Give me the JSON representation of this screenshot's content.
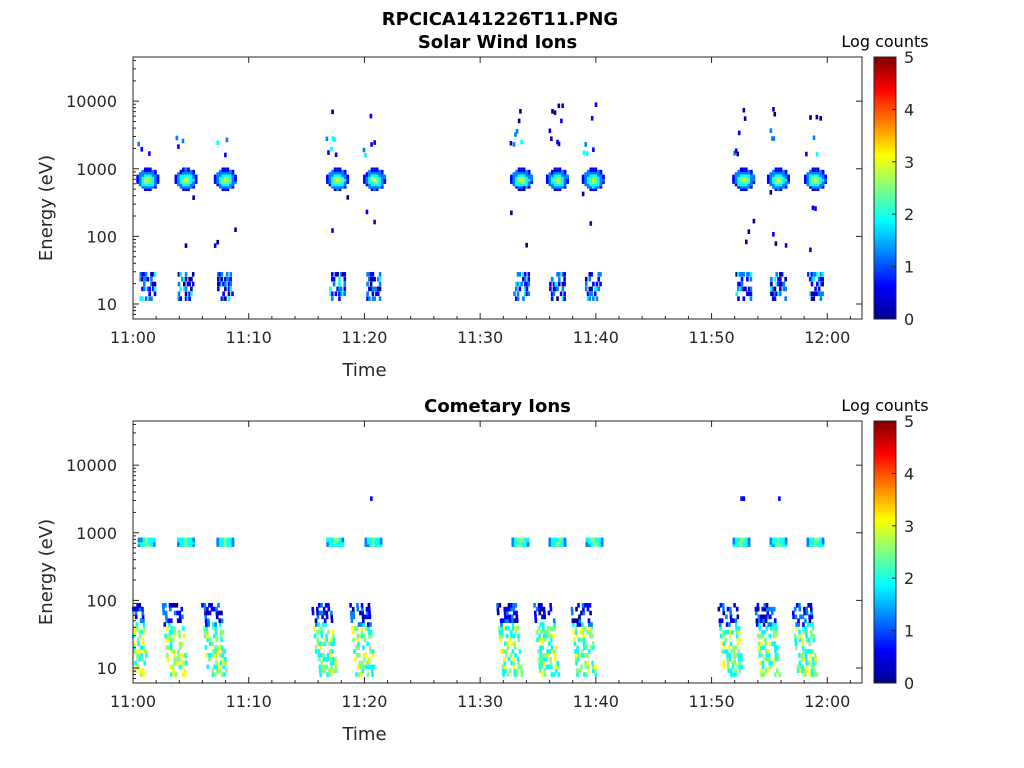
{
  "figure": {
    "title": "RPCICA141226T11.PNG"
  },
  "colormap": [
    "#00008f",
    "#0000ff",
    "#0080ff",
    "#00ffff",
    "#80ff80",
    "#ffff00",
    "#ff8000",
    "#ff0000",
    "#800000"
  ],
  "chart_data": [
    {
      "type": "heatmap",
      "title": "Solar Wind Ions",
      "xlabel": "Time",
      "ylabel": "Energy (eV)",
      "x_ticks": [
        "11:00",
        "11:10",
        "11:20",
        "11:30",
        "11:40",
        "11:50",
        "12:00"
      ],
      "x_tick_values_min": [
        0,
        10,
        20,
        30,
        40,
        50,
        60
      ],
      "xlim_min": [
        0,
        63
      ],
      "y_scale": "log",
      "y_ticks": [
        "10",
        "100",
        "1000",
        "10000"
      ],
      "y_tick_values": [
        10,
        100,
        1000,
        10000
      ],
      "ylim": [
        6,
        45000
      ],
      "colorbar": {
        "label": "Log counts",
        "ticks": [
          "0",
          "1",
          "2",
          "3",
          "4",
          "5"
        ],
        "range": [
          0,
          5
        ]
      },
      "bursts_time_min": [
        1.3,
        4.6,
        8.0,
        17.7,
        20.9,
        33.6,
        36.7,
        39.8,
        52.8,
        55.8,
        59.0
      ],
      "beam_energy_eV": 700,
      "beam_peak_log_counts": 2.9
    },
    {
      "type": "heatmap",
      "title": "Cometary Ions",
      "xlabel": "Time",
      "ylabel": "Energy (eV)",
      "x_ticks": [
        "11:00",
        "11:10",
        "11:20",
        "11:30",
        "11:40",
        "11:50",
        "12:00"
      ],
      "x_tick_values_min": [
        0,
        10,
        20,
        30,
        40,
        50,
        60
      ],
      "xlim_min": [
        0,
        63
      ],
      "y_scale": "log",
      "y_ticks": [
        "10",
        "100",
        "1000",
        "10000"
      ],
      "y_tick_values": [
        10,
        100,
        1000,
        10000
      ],
      "ylim": [
        6,
        45000
      ],
      "colorbar": {
        "label": "Log counts",
        "ticks": [
          "0",
          "1",
          "2",
          "3",
          "4",
          "5"
        ],
        "range": [
          0,
          5
        ]
      },
      "bursts_time_min": [
        1.2,
        4.6,
        8.0,
        17.5,
        20.8,
        33.5,
        36.7,
        39.9,
        52.6,
        55.8,
        59.0
      ],
      "beam_energy_eV": 750,
      "beam_peak_log_counts": 2.2
    }
  ]
}
